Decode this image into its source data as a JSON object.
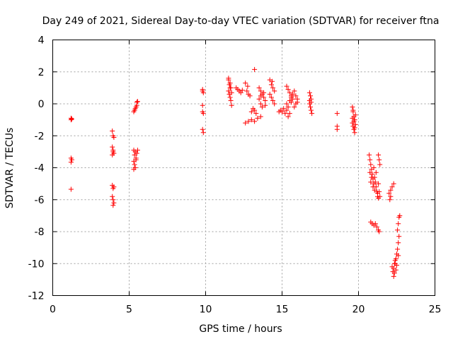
{
  "chart_data": {
    "type": "scatter",
    "title": "Day 249 of 2021, Sidereal Day-to-day VTEC variation (SDTVAR) for receiver ftna",
    "xlabel": "GPS time / hours",
    "ylabel": "SDTVAR / TECUs",
    "xlim": [
      0,
      25
    ],
    "ylim": [
      -12,
      4
    ],
    "xticks": [
      0,
      5,
      10,
      15,
      20,
      25
    ],
    "yticks": [
      4,
      2,
      0,
      -2,
      -4,
      -6,
      -8,
      -10,
      -12
    ],
    "grid": true,
    "marker": "plus",
    "color": "#ff0000",
    "series": [
      {
        "name": "SDTVAR",
        "points": [
          [
            1.2,
            -0.9
          ],
          [
            1.2,
            -1.0
          ],
          [
            1.25,
            -0.95
          ],
          [
            1.2,
            -3.4
          ],
          [
            1.25,
            -3.5
          ],
          [
            1.2,
            -3.65
          ],
          [
            1.2,
            -5.35
          ],
          [
            3.9,
            -1.7
          ],
          [
            3.95,
            -2.0
          ],
          [
            4.0,
            -2.1
          ],
          [
            3.9,
            -2.7
          ],
          [
            3.95,
            -2.9
          ],
          [
            4.0,
            -3.1
          ],
          [
            3.9,
            -3.2
          ],
          [
            3.95,
            -3.0
          ],
          [
            3.9,
            -5.1
          ],
          [
            3.95,
            -5.3
          ],
          [
            4.0,
            -5.2
          ],
          [
            3.9,
            -5.8
          ],
          [
            3.95,
            -6.0
          ],
          [
            4.0,
            -6.2
          ],
          [
            3.95,
            -6.35
          ],
          [
            5.3,
            -0.5
          ],
          [
            5.35,
            -0.4
          ],
          [
            5.4,
            -0.3
          ],
          [
            5.45,
            -0.2
          ],
          [
            5.5,
            -0.1
          ],
          [
            5.5,
            0.1
          ],
          [
            5.55,
            0.15
          ],
          [
            5.3,
            -2.9
          ],
          [
            5.35,
            -3.2
          ],
          [
            5.4,
            -3.0
          ],
          [
            5.45,
            -3.4
          ],
          [
            5.3,
            -3.6
          ],
          [
            5.35,
            -3.8
          ],
          [
            5.4,
            -4.0
          ],
          [
            5.45,
            -3.5
          ],
          [
            5.5,
            -3.1
          ],
          [
            5.55,
            -2.9
          ],
          [
            5.3,
            -4.1
          ],
          [
            9.8,
            0.9
          ],
          [
            9.8,
            0.8
          ],
          [
            9.85,
            0.7
          ],
          [
            9.8,
            -0.1
          ],
          [
            9.8,
            -0.5
          ],
          [
            9.85,
            -0.6
          ],
          [
            9.8,
            -1.6
          ],
          [
            9.85,
            -1.8
          ],
          [
            11.5,
            1.5
          ],
          [
            11.55,
            1.2
          ],
          [
            11.6,
            1.0
          ],
          [
            11.5,
            0.8
          ],
          [
            11.55,
            0.6
          ],
          [
            11.6,
            0.4
          ],
          [
            11.65,
            0.2
          ],
          [
            11.7,
            -0.1
          ],
          [
            11.5,
            1.6
          ],
          [
            11.6,
            1.3
          ],
          [
            11.65,
            1.0
          ],
          [
            11.7,
            0.7
          ],
          [
            12.0,
            1.0
          ],
          [
            12.1,
            0.9
          ],
          [
            12.2,
            0.8
          ],
          [
            12.3,
            0.7
          ],
          [
            12.4,
            0.85
          ],
          [
            12.6,
            1.3
          ],
          [
            12.7,
            0.8
          ],
          [
            12.8,
            0.6
          ],
          [
            12.75,
            1.1
          ],
          [
            12.9,
            0.5
          ],
          [
            12.6,
            -1.2
          ],
          [
            12.8,
            -1.1
          ],
          [
            13.0,
            -1.0
          ],
          [
            13.2,
            -1.1
          ],
          [
            13.4,
            -0.9
          ],
          [
            13.6,
            -0.8
          ],
          [
            13.2,
            2.15
          ],
          [
            13.0,
            -0.5
          ],
          [
            13.1,
            -0.3
          ],
          [
            13.2,
            -0.4
          ],
          [
            13.3,
            -0.6
          ],
          [
            13.5,
            1.0
          ],
          [
            13.6,
            0.8
          ],
          [
            13.7,
            0.6
          ],
          [
            13.8,
            0.4
          ],
          [
            13.9,
            0.2
          ],
          [
            13.6,
            0.0
          ],
          [
            13.7,
            -0.2
          ],
          [
            13.5,
            0.3
          ],
          [
            13.8,
            0.7
          ],
          [
            13.9,
            -0.1
          ],
          [
            13.6,
            0.5
          ],
          [
            14.2,
            1.5
          ],
          [
            14.3,
            1.2
          ],
          [
            14.4,
            1.0
          ],
          [
            14.5,
            0.8
          ],
          [
            14.2,
            0.6
          ],
          [
            14.3,
            0.4
          ],
          [
            14.4,
            0.2
          ],
          [
            14.5,
            0.0
          ],
          [
            14.35,
            1.4
          ],
          [
            14.8,
            -0.5
          ],
          [
            14.9,
            -0.4
          ],
          [
            15.0,
            -0.5
          ],
          [
            15.1,
            -0.3
          ],
          [
            15.2,
            -0.6
          ],
          [
            15.3,
            1.1
          ],
          [
            15.4,
            0.9
          ],
          [
            15.5,
            0.7
          ],
          [
            15.6,
            0.5
          ],
          [
            15.7,
            0.3
          ],
          [
            15.3,
            0.0
          ],
          [
            15.4,
            -0.2
          ],
          [
            15.5,
            0.2
          ],
          [
            15.6,
            0.4
          ],
          [
            15.7,
            0.6
          ],
          [
            15.8,
            0.8
          ],
          [
            15.9,
            0.5
          ],
          [
            16.0,
            0.3
          ],
          [
            15.4,
            -0.8
          ],
          [
            15.5,
            -0.6
          ],
          [
            15.6,
            0.1
          ],
          [
            15.8,
            -0.2
          ],
          [
            16.0,
            0.1
          ],
          [
            15.3,
            -0.4
          ],
          [
            15.9,
            0.0
          ],
          [
            16.8,
            0.7
          ],
          [
            16.85,
            0.5
          ],
          [
            16.9,
            0.3
          ],
          [
            16.8,
            0.0
          ],
          [
            16.85,
            -0.2
          ],
          [
            16.9,
            -0.4
          ],
          [
            16.95,
            -0.6
          ],
          [
            16.8,
            0.2
          ],
          [
            16.9,
            0.1
          ],
          [
            18.6,
            -0.6
          ],
          [
            18.6,
            -1.4
          ],
          [
            18.6,
            -1.6
          ],
          [
            19.6,
            -0.2
          ],
          [
            19.65,
            -0.5
          ],
          [
            19.7,
            -0.8
          ],
          [
            19.75,
            -1.0
          ],
          [
            19.6,
            -1.2
          ],
          [
            19.65,
            -1.4
          ],
          [
            19.7,
            -1.6
          ],
          [
            19.75,
            -1.8
          ],
          [
            19.8,
            -0.7
          ],
          [
            19.6,
            -0.9
          ],
          [
            19.7,
            -1.1
          ],
          [
            19.8,
            -1.3
          ],
          [
            19.65,
            -0.4
          ],
          [
            19.75,
            -1.5
          ],
          [
            20.7,
            -3.2
          ],
          [
            20.75,
            -3.5
          ],
          [
            20.8,
            -3.8
          ],
          [
            20.85,
            -4.1
          ],
          [
            20.9,
            -4.4
          ],
          [
            20.95,
            -4.7
          ],
          [
            21.0,
            -5.0
          ],
          [
            21.05,
            -4.6
          ],
          [
            21.1,
            -4.9
          ],
          [
            21.15,
            -5.2
          ],
          [
            21.2,
            -5.5
          ],
          [
            21.25,
            -5.8
          ],
          [
            21.3,
            -5.9
          ],
          [
            20.75,
            -4.3
          ],
          [
            20.85,
            -4.6
          ],
          [
            20.95,
            -5.2
          ],
          [
            21.05,
            -5.4
          ],
          [
            21.15,
            -4.3
          ],
          [
            21.25,
            -5.6
          ],
          [
            20.8,
            -4.9
          ],
          [
            21.0,
            -4.0
          ],
          [
            21.3,
            -3.2
          ],
          [
            21.35,
            -3.5
          ],
          [
            21.4,
            -3.8
          ],
          [
            21.3,
            -5.0
          ],
          [
            21.35,
            -5.5
          ],
          [
            21.4,
            -5.8
          ],
          [
            20.8,
            -7.4
          ],
          [
            20.9,
            -7.5
          ],
          [
            21.0,
            -7.6
          ],
          [
            21.1,
            -7.5
          ],
          [
            21.2,
            -7.7
          ],
          [
            21.3,
            -7.9
          ],
          [
            21.35,
            -8.0
          ],
          [
            22.0,
            -5.6
          ],
          [
            22.1,
            -5.4
          ],
          [
            22.2,
            -5.2
          ],
          [
            22.3,
            -5.0
          ],
          [
            22.05,
            -6.0
          ],
          [
            22.1,
            -5.8
          ],
          [
            22.2,
            -10.2
          ],
          [
            22.25,
            -10.5
          ],
          [
            22.3,
            -10.8
          ],
          [
            22.35,
            -10.6
          ],
          [
            22.3,
            -10.3
          ],
          [
            22.4,
            -10.0
          ],
          [
            22.45,
            -9.7
          ],
          [
            22.5,
            -9.4
          ],
          [
            22.55,
            -9.1
          ],
          [
            22.6,
            -8.7
          ],
          [
            22.65,
            -8.3
          ],
          [
            22.55,
            -7.9
          ],
          [
            22.6,
            -7.5
          ],
          [
            22.65,
            -7.1
          ],
          [
            22.7,
            -7.0
          ],
          [
            22.4,
            -9.8
          ],
          [
            22.5,
            -10.1
          ],
          [
            22.6,
            -9.5
          ],
          [
            22.35,
            -10.0
          ],
          [
            22.45,
            -10.4
          ]
        ]
      }
    ]
  }
}
